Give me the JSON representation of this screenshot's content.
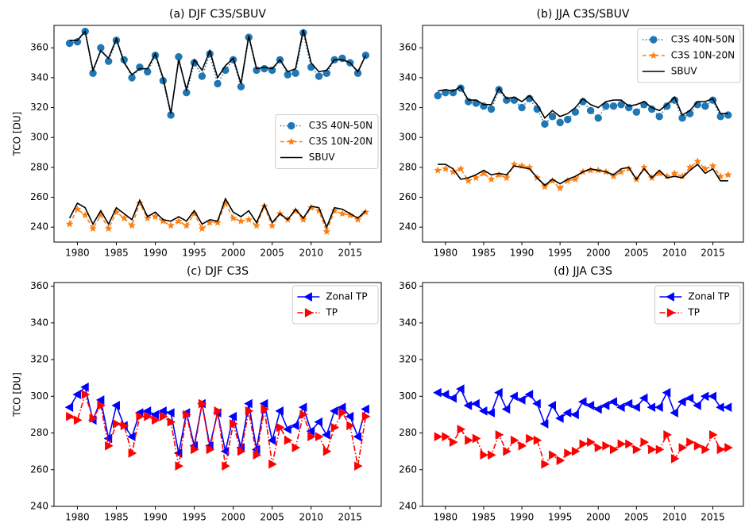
{
  "chart_data": [
    {
      "type": "line",
      "title": "(a) DJF C3S/SBUV",
      "ylabel": "TCO [DU]",
      "legend": "center right",
      "x": [
        1979,
        1980,
        1981,
        1982,
        1983,
        1984,
        1985,
        1986,
        1987,
        1988,
        1989,
        1990,
        1991,
        1992,
        1993,
        1994,
        1995,
        1996,
        1997,
        1998,
        1999,
        2000,
        2001,
        2002,
        2003,
        2004,
        2005,
        2006,
        2007,
        2008,
        2009,
        2010,
        2011,
        2012,
        2013,
        2014,
        2015,
        2016,
        2017
      ],
      "xlim": [
        1977,
        2019
      ],
      "ylim": [
        230,
        375
      ],
      "xticks": [
        1980,
        1985,
        1990,
        1995,
        2000,
        2005,
        2010,
        2015
      ],
      "yticks": [
        240,
        260,
        280,
        300,
        320,
        340,
        360
      ],
      "series": [
        {
          "name": "C3S 40N-50N",
          "color": "#1f77b4",
          "marker": "circle",
          "linestyle": "dotted",
          "values": [
            363,
            364,
            371,
            343,
            360,
            351,
            365,
            352,
            340,
            347,
            344,
            355,
            338,
            315,
            354,
            330,
            350,
            341,
            356,
            336,
            345,
            352,
            334,
            367,
            345,
            346,
            345,
            352,
            342,
            343,
            370,
            347,
            341,
            343,
            352,
            353,
            350,
            343,
            355
          ]
        },
        {
          "name": "C3S 10N-20N",
          "color": "#ff7f0e",
          "marker": "star",
          "linestyle": "dashed",
          "values": [
            242,
            252,
            248,
            239,
            248,
            239,
            250,
            246,
            241,
            256,
            246,
            247,
            244,
            241,
            244,
            241,
            249,
            239,
            243,
            243,
            256,
            246,
            244,
            245,
            241,
            254,
            241,
            249,
            245,
            251,
            245,
            253,
            251,
            237,
            251,
            249,
            248,
            245,
            250
          ]
        },
        {
          "name": "SBUV",
          "color": "#000000",
          "marker": "none",
          "linestyle": "solid",
          "values": [
            365,
            365,
            371,
            345,
            358,
            353,
            366,
            350,
            342,
            346,
            346,
            356,
            340,
            316,
            352,
            332,
            352,
            345,
            358,
            340,
            348,
            353,
            336,
            368,
            346,
            347,
            346,
            352,
            344,
            346,
            372,
            350,
            344,
            345,
            352,
            352,
            350,
            344,
            355
          ]
        },
        {
          "color": "#000000",
          "marker": "none",
          "linestyle": "solid",
          "values": [
            246,
            256,
            253,
            242,
            251,
            242,
            253,
            249,
            245,
            258,
            247,
            250,
            245,
            244,
            247,
            244,
            251,
            242,
            245,
            244,
            259,
            250,
            247,
            251,
            243,
            255,
            243,
            249,
            245,
            252,
            246,
            254,
            253,
            240,
            253,
            252,
            249,
            246,
            251
          ]
        }
      ]
    },
    {
      "type": "line",
      "title": "(b) JJA C3S/SBUV",
      "legend": "upper right",
      "x": [
        1979,
        1980,
        1981,
        1982,
        1983,
        1984,
        1985,
        1986,
        1987,
        1988,
        1989,
        1990,
        1991,
        1992,
        1993,
        1994,
        1995,
        1996,
        1997,
        1998,
        1999,
        2000,
        2001,
        2002,
        2003,
        2004,
        2005,
        2006,
        2007,
        2008,
        2009,
        2010,
        2011,
        2012,
        2013,
        2014,
        2015,
        2016,
        2017
      ],
      "xlim": [
        1977,
        2019
      ],
      "ylim": [
        230,
        375
      ],
      "xticks": [
        1980,
        1985,
        1990,
        1995,
        2000,
        2005,
        2010,
        2015
      ],
      "yticks": [
        240,
        260,
        280,
        300,
        320,
        340,
        360
      ],
      "series": [
        {
          "name": "C3S 40N-50N",
          "color": "#1f77b4",
          "marker": "circle",
          "linestyle": "dotted",
          "values": [
            328,
            330,
            330,
            333,
            324,
            323,
            321,
            319,
            332,
            325,
            325,
            320,
            326,
            319,
            309,
            314,
            310,
            312,
            317,
            324,
            318,
            313,
            321,
            321,
            322,
            320,
            317,
            322,
            319,
            314,
            321,
            325,
            313,
            316,
            322,
            321,
            325,
            314,
            315
          ]
        },
        {
          "name": "C3S 10N-20N",
          "color": "#ff7f0e",
          "marker": "star",
          "linestyle": "dashed",
          "values": [
            278,
            279,
            277,
            279,
            271,
            273,
            276,
            272,
            275,
            273,
            282,
            281,
            280,
            273,
            267,
            271,
            266,
            271,
            272,
            277,
            278,
            278,
            277,
            274,
            277,
            279,
            272,
            280,
            273,
            276,
            274,
            276,
            274,
            280,
            284,
            279,
            281,
            274,
            275
          ]
        },
        {
          "name": "SBUV",
          "color": "#000000",
          "marker": "none",
          "linestyle": "solid",
          "values": [
            331,
            332,
            331,
            334,
            325,
            325,
            322,
            322,
            333,
            326,
            327,
            324,
            328,
            322,
            313,
            318,
            314,
            316,
            320,
            326,
            322,
            320,
            324,
            325,
            325,
            321,
            322,
            324,
            320,
            318,
            322,
            327,
            315,
            318,
            324,
            324,
            326,
            316,
            316
          ]
        },
        {
          "color": "#000000",
          "marker": "none",
          "linestyle": "solid",
          "values": [
            282,
            282,
            279,
            272,
            273,
            275,
            278,
            275,
            276,
            275,
            281,
            280,
            279,
            273,
            268,
            272,
            269,
            272,
            274,
            277,
            279,
            278,
            277,
            275,
            279,
            280,
            272,
            279,
            273,
            278,
            273,
            274,
            273,
            278,
            282,
            276,
            279,
            271,
            271
          ]
        }
      ]
    },
    {
      "type": "line",
      "title": "(c) DJF C3S",
      "ylabel": "TCO [DU]",
      "legend": "upper right",
      "x": [
        1979,
        1980,
        1981,
        1982,
        1983,
        1984,
        1985,
        1986,
        1987,
        1988,
        1989,
        1990,
        1991,
        1992,
        1993,
        1994,
        1995,
        1996,
        1997,
        1998,
        1999,
        2000,
        2001,
        2002,
        2003,
        2004,
        2005,
        2006,
        2007,
        2008,
        2009,
        2010,
        2011,
        2012,
        2013,
        2014,
        2015,
        2016,
        2017
      ],
      "xlim": [
        1977,
        2019
      ],
      "ylim": [
        240,
        362
      ],
      "xticks": [
        1980,
        1985,
        1990,
        1995,
        2000,
        2005,
        2010,
        2015
      ],
      "yticks": [
        240,
        260,
        280,
        300,
        320,
        340,
        360
      ],
      "series": [
        {
          "name": "Zonal TP",
          "color": "#0000ff",
          "marker": "tri-left",
          "linestyle": "solid",
          "values": [
            294,
            301,
            305,
            287,
            298,
            277,
            295,
            284,
            278,
            291,
            292,
            290,
            292,
            291,
            269,
            291,
            273,
            296,
            273,
            291,
            270,
            289,
            272,
            296,
            271,
            296,
            276,
            292,
            282,
            284,
            294,
            281,
            286,
            279,
            292,
            294,
            289,
            278,
            293
          ]
        },
        {
          "name": "TP",
          "color": "#ff0000",
          "marker": "tri-right",
          "linestyle": "dashdot",
          "values": [
            289,
            287,
            301,
            288,
            295,
            273,
            285,
            284,
            269,
            289,
            289,
            287,
            289,
            286,
            262,
            290,
            271,
            296,
            271,
            292,
            262,
            285,
            270,
            292,
            268,
            293,
            263,
            283,
            276,
            272,
            290,
            278,
            278,
            270,
            283,
            291,
            284,
            262,
            289
          ]
        }
      ]
    },
    {
      "type": "line",
      "title": "(d) JJA C3S",
      "legend": "upper right",
      "x": [
        1979,
        1980,
        1981,
        1982,
        1983,
        1984,
        1985,
        1986,
        1987,
        1988,
        1989,
        1990,
        1991,
        1992,
        1993,
        1994,
        1995,
        1996,
        1997,
        1998,
        1999,
        2000,
        2001,
        2002,
        2003,
        2004,
        2005,
        2006,
        2007,
        2008,
        2009,
        2010,
        2011,
        2012,
        2013,
        2014,
        2015,
        2016,
        2017
      ],
      "xlim": [
        1977,
        2019
      ],
      "ylim": [
        240,
        362
      ],
      "xticks": [
        1980,
        1985,
        1990,
        1995,
        2000,
        2005,
        2010,
        2015
      ],
      "yticks": [
        240,
        260,
        280,
        300,
        320,
        340,
        360
      ],
      "series": [
        {
          "name": "Zonal TP",
          "color": "#0000ff",
          "marker": "tri-left",
          "linestyle": "solid",
          "values": [
            302,
            301,
            299,
            304,
            295,
            296,
            292,
            291,
            302,
            293,
            300,
            298,
            301,
            296,
            285,
            295,
            288,
            291,
            290,
            297,
            295,
            293,
            295,
            297,
            294,
            296,
            294,
            299,
            294,
            294,
            302,
            291,
            297,
            299,
            295,
            300,
            300,
            294,
            294
          ]
        },
        {
          "name": "TP",
          "color": "#ff0000",
          "marker": "tri-right",
          "linestyle": "dashdot",
          "values": [
            278,
            278,
            275,
            282,
            276,
            277,
            268,
            268,
            279,
            270,
            276,
            273,
            277,
            276,
            263,
            268,
            265,
            269,
            270,
            274,
            275,
            272,
            273,
            271,
            274,
            274,
            271,
            275,
            271,
            271,
            279,
            266,
            272,
            275,
            273,
            271,
            279,
            271,
            272
          ]
        }
      ]
    }
  ]
}
